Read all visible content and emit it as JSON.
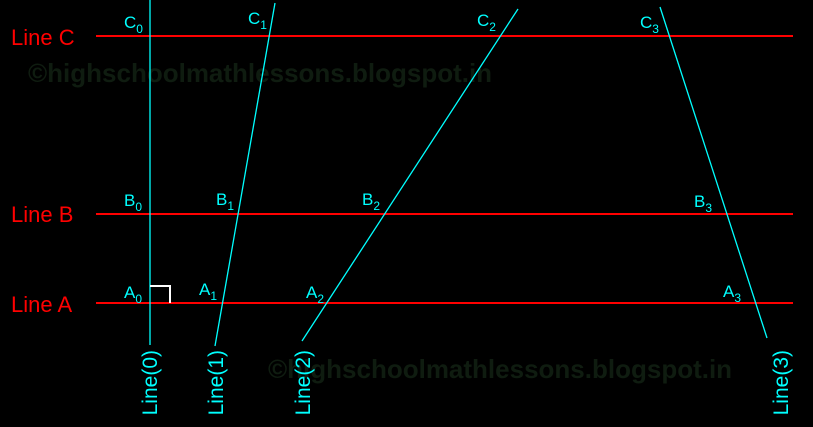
{
  "watermark": "©highschoolmathlessons.blogspot.in",
  "colors": {
    "parallel_lines": "#ff0000",
    "transversals": "#00ffff",
    "right_angle": "#ffffff",
    "background": "#000000"
  },
  "parallel_lines": [
    {
      "label": "Line C"
    },
    {
      "label": "Line B"
    },
    {
      "label": "Line A"
    }
  ],
  "transversals": [
    {
      "label": "Line(0)",
      "points": [
        {
          "letter": "C",
          "sub": "0"
        },
        {
          "letter": "B",
          "sub": "0"
        },
        {
          "letter": "A",
          "sub": "0"
        }
      ]
    },
    {
      "label": "Line(1)",
      "points": [
        {
          "letter": "C",
          "sub": "1"
        },
        {
          "letter": "B",
          "sub": "1"
        },
        {
          "letter": "A",
          "sub": "1"
        }
      ]
    },
    {
      "label": "Line(2)",
      "points": [
        {
          "letter": "C",
          "sub": "2"
        },
        {
          "letter": "B",
          "sub": "2"
        },
        {
          "letter": "A",
          "sub": "2"
        }
      ]
    },
    {
      "label": "Line(3)",
      "points": [
        {
          "letter": "C",
          "sub": "3"
        },
        {
          "letter": "B",
          "sub": "3"
        },
        {
          "letter": "A",
          "sub": "3"
        }
      ]
    }
  ]
}
